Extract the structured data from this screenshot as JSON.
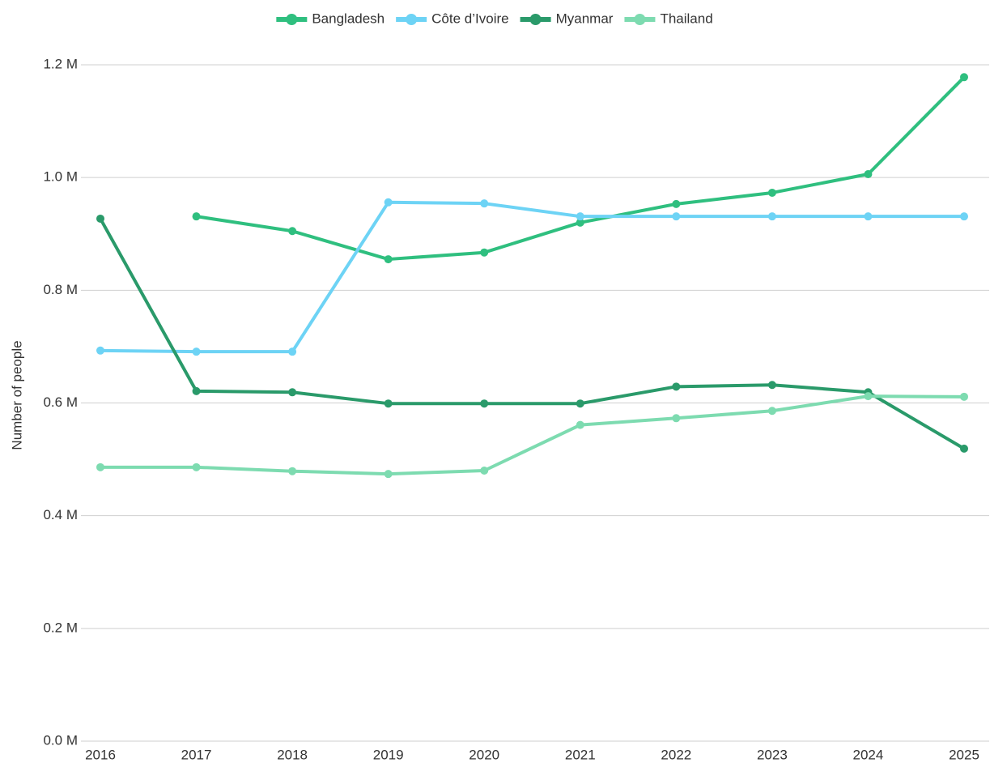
{
  "chart_data": {
    "type": "line",
    "y_label": "Number of people",
    "x": [
      2016,
      2017,
      2018,
      2019,
      2020,
      2021,
      2022,
      2023,
      2024,
      2025
    ],
    "xlim": [
      2016,
      2025
    ],
    "xticks": [
      2016,
      2017,
      2018,
      2019,
      2020,
      2021,
      2022,
      2023,
      2024,
      2025
    ],
    "ylim": [
      0,
      1200000
    ],
    "yticks": [
      {
        "value": 0,
        "label": "0.0 M"
      },
      {
        "value": 200000,
        "label": "0.2 M"
      },
      {
        "value": 400000,
        "label": "0.4 M"
      },
      {
        "value": 600000,
        "label": "0.6 M"
      },
      {
        "value": 800000,
        "label": "0.8 M"
      },
      {
        "value": 1000000,
        "label": "1.0 M"
      },
      {
        "value": 1200000,
        "label": "1.2 M"
      }
    ],
    "grid": true,
    "legend": "top",
    "series": [
      {
        "name": "Bangladesh",
        "color": "#2fbf7f",
        "values": [
          null,
          931000,
          905000,
          855000,
          867000,
          920000,
          953000,
          973000,
          1006000,
          1178000
        ]
      },
      {
        "name": "Côte d’Ivoire",
        "color": "#6dd3f5",
        "values": [
          693000,
          691000,
          691000,
          956000,
          954000,
          931000,
          931000,
          931000,
          931000,
          931000
        ]
      },
      {
        "name": "Myanmar",
        "color": "#2a9a6a",
        "values": [
          927000,
          621000,
          619000,
          599000,
          599000,
          599000,
          629000,
          632000,
          619000,
          519000
        ]
      },
      {
        "name": "Thailand",
        "color": "#7ddbb0",
        "values": [
          486000,
          486000,
          479000,
          474000,
          480000,
          561000,
          573000,
          586000,
          612000,
          611000
        ]
      }
    ]
  }
}
